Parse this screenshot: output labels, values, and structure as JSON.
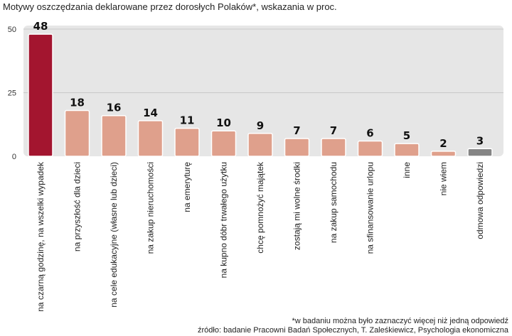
{
  "title": "Motywy oszczędzania deklarowane przez dorosłych Polaków*, wskazania w proc.",
  "footnote": "*w badaniu można było zaznaczyć więcej niż jedną odpowiedź",
  "source": "źródło: badanie Pracowni Badań Społecznych,  T. Zaleśkiewicz, Psychologia ekonomiczna",
  "colors": {
    "highlight": "#a3152f",
    "bar": "#dfa08c",
    "neutral": "#858585",
    "background_panel": "#e6e6e6"
  },
  "chart_data": {
    "type": "bar",
    "title": "Motywy oszczędzania deklarowane przez dorosłych Polaków*, wskazania w proc.",
    "xlabel": "",
    "ylabel": "",
    "ylim": [
      0,
      50
    ],
    "yticks": [
      0,
      25,
      50
    ],
    "grid": true,
    "categories": [
      "na czarną godzinę, na wszelki wypadek",
      "na przyszłość dla dzieci",
      "na cele edukacyjne (własne lub dzieci)",
      "na zakup nieruchomości",
      "na emeryturę",
      "na kupno dóbr trwałego użytku",
      "chcę pomnożyć majątek",
      "zostają mi wolne środki",
      "na zakup samochodu",
      "na sfinansowanie urlopu",
      "inne",
      "nie wiem",
      "odmowa odpowiedzi"
    ],
    "values": [
      48,
      18,
      16,
      14,
      11,
      10,
      9,
      7,
      7,
      6,
      5,
      2,
      3
    ],
    "bar_colors": [
      "highlight",
      "bar",
      "bar",
      "bar",
      "bar",
      "bar",
      "bar",
      "bar",
      "bar",
      "bar",
      "bar",
      "bar",
      "neutral"
    ]
  }
}
